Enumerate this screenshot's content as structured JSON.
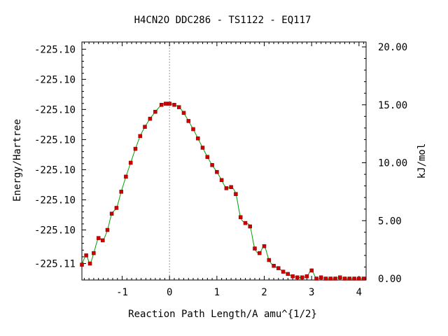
{
  "chart_data": {
    "type": "line",
    "title": "H4CN2O   DDC286 - TS1122 - EQ117",
    "xlabel": "Reaction Path Length/A amu^{1/2}",
    "ylabel": "Energy/Hartree",
    "y2label": "kJ/mol",
    "xlim": [
      -1.85,
      4.15
    ],
    "y2lim": [
      0,
      20
    ],
    "x_ticks": [
      -1,
      0,
      1,
      2,
      3,
      4
    ],
    "x_tick_labels": [
      "-1",
      "0",
      "1",
      "2",
      "3",
      "4"
    ],
    "y_left_tick_labels": [
      "-225.10",
      "-225.10",
      "-225.10",
      "-225.10",
      "-225.10",
      "-225.10",
      "-225.10",
      "-225.11"
    ],
    "y_left_tick_kjmol": [
      19.8,
      17.2,
      14.6,
      12.0,
      9.4,
      6.8,
      4.2,
      1.3
    ],
    "y2_ticks": [
      0,
      5,
      10,
      15,
      20
    ],
    "y2_tick_labels": [
      "0.00",
      "5.00",
      "10.00",
      "15.00",
      "20.00"
    ],
    "ts_x": 0,
    "grid": false,
    "series": [
      {
        "line_color": "#00a000",
        "marker_color": "#cc0000",
        "x": [
          -1.85,
          -1.76,
          -1.68,
          -1.6,
          -1.5,
          -1.41,
          -1.31,
          -1.22,
          -1.12,
          -1.02,
          -0.92,
          -0.82,
          -0.72,
          -0.62,
          -0.52,
          -0.41,
          -0.3,
          -0.17,
          -0.08,
          0.0,
          0.1,
          0.2,
          0.3,
          0.4,
          0.5,
          0.6,
          0.7,
          0.8,
          0.9,
          1.0,
          1.1,
          1.2,
          1.3,
          1.4,
          1.5,
          1.6,
          1.7,
          1.8,
          1.9,
          2.0,
          2.1,
          2.2,
          2.3,
          2.4,
          2.5,
          2.6,
          2.7,
          2.8,
          2.9,
          3.0,
          3.1,
          3.2,
          3.3,
          3.4,
          3.5,
          3.6,
          3.7,
          3.8,
          3.9,
          4.0,
          4.1
        ],
        "y": [
          1.2,
          2.0,
          1.3,
          2.2,
          3.5,
          3.3,
          4.2,
          5.6,
          6.1,
          7.5,
          8.8,
          10.0,
          11.2,
          12.3,
          13.1,
          13.8,
          14.4,
          15.0,
          15.1,
          15.1,
          15.0,
          14.8,
          14.3,
          13.6,
          12.9,
          12.1,
          11.3,
          10.5,
          9.8,
          9.2,
          8.5,
          7.8,
          7.9,
          7.3,
          5.3,
          4.8,
          4.5,
          2.6,
          2.2,
          2.8,
          1.6,
          1.1,
          0.9,
          0.6,
          0.4,
          0.2,
          0.1,
          0.1,
          0.2,
          0.7,
          0.0,
          0.1,
          0.0,
          0.0,
          0.0,
          0.1,
          0.0,
          0.0,
          0.0,
          0.0,
          0.0
        ]
      }
    ]
  }
}
